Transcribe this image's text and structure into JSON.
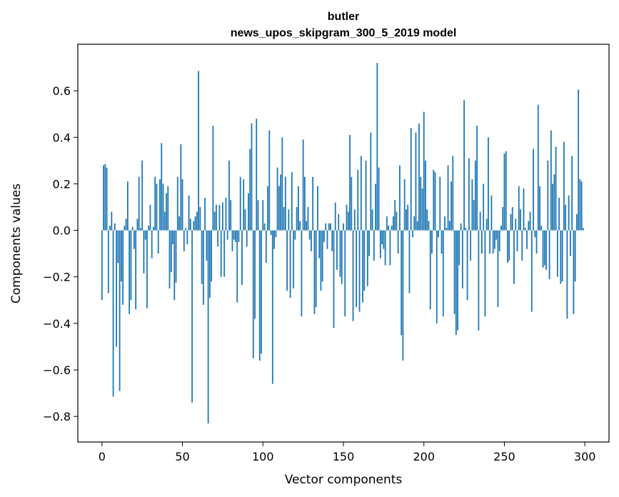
{
  "chart_data": {
    "type": "bar",
    "title": "butler",
    "subtitle": "news_upos_skipgram_300_5_2019 model",
    "xlabel": "Vector components",
    "ylabel": "Components values",
    "xlim": [
      -15,
      315
    ],
    "ylim": [
      -0.91,
      0.8
    ],
    "x_ticks": [
      0,
      50,
      100,
      150,
      200,
      250,
      300
    ],
    "y_ticks": [
      -0.8,
      -0.6,
      -0.4,
      -0.2,
      0.0,
      0.2,
      0.4,
      0.6
    ],
    "y_tick_labels": [
      "−0.8",
      "−0.6",
      "−0.4",
      "−0.2",
      "0.0",
      "0.2",
      "0.4",
      "0.6"
    ],
    "bar_color": "#1f77b4",
    "grid": false,
    "values": [
      -0.3,
      0.28,
      0.285,
      0.27,
      -0.27,
      0.02,
      0.08,
      -0.715,
      0.03,
      -0.5,
      -0.14,
      -0.69,
      -0.22,
      -0.32,
      0.02,
      0.05,
      0.21,
      -0.36,
      -0.3,
      0.015,
      -0.08,
      -0.34,
      0.05,
      0.23,
      0.01,
      0.3,
      -0.185,
      -0.04,
      -0.335,
      0.02,
      0.11,
      -0.12,
      0.015,
      0.23,
      0.2,
      -0.1,
      0.22,
      0.375,
      0.2,
      0.08,
      0.16,
      0.19,
      -0.25,
      -0.18,
      -0.06,
      -0.3,
      -0.225,
      0.23,
      0.06,
      0.37,
      0.22,
      -0.09,
      0.01,
      -0.06,
      0.15,
      0.05,
      -0.74,
      0.04,
      0.06,
      0.08,
      0.685,
      0.1,
      -0.23,
      -0.32,
      0.14,
      -0.13,
      -0.83,
      -0.29,
      -0.22,
      0.45,
      0.08,
      0.11,
      -0.07,
      0.11,
      -0.2,
      0.12,
      -0.2,
      0.14,
      -0.04,
      0.3,
      0.13,
      -0.09,
      -0.04,
      -0.05,
      -0.31,
      -0.05,
      0.23,
      -0.235,
      0.22,
      0.09,
      -0.07,
      0.16,
      0.35,
      0.46,
      -0.55,
      -0.38,
      0.48,
      0.13,
      -0.56,
      -0.53,
      0.13,
      0.03,
      -0.14,
      0.19,
      0.43,
      -0.02,
      -0.66,
      -0.08,
      -0.03,
      0.27,
      0.19,
      0.24,
      0.4,
      0.1,
      0.23,
      -0.26,
      0.09,
      -0.29,
      0.25,
      -0.25,
      -0.04,
      0.1,
      0.19,
      0.04,
      -0.37,
      0.39,
      0.23,
      0.04,
      0.1,
      -0.04,
      -0.09,
      0.23,
      -0.36,
      -0.33,
      0.19,
      -0.12,
      -0.26,
      -0.22,
      -0.05,
      0.03,
      -0.08,
      0.03,
      0.03,
      -0.09,
      -0.42,
      0.12,
      -0.17,
      0.07,
      -0.2,
      -0.23,
      0.03,
      -0.37,
      0.11,
      0.08,
      0.41,
      0.23,
      -0.39,
      0.09,
      -0.33,
      0.26,
      -0.35,
      0.32,
      -0.31,
      -0.26,
      0.3,
      -0.24,
      -0.11,
      0.42,
      0.09,
      -0.13,
      0.2,
      0.72,
      0.27,
      -0.12,
      -0.06,
      -0.08,
      -0.15,
      0.06,
      0.02,
      -0.15,
      0.02,
      0.06,
      0.13,
      0.08,
      -0.1,
      0.28,
      -0.45,
      -0.56,
      0.22,
      0.09,
      0.11,
      -0.27,
      0.44,
      -0.03,
      0.06,
      0.42,
      0.04,
      0.46,
      0.23,
      0.18,
      0.51,
      0.3,
      0.09,
      0.04,
      -0.34,
      -0.1,
      0.26,
      0.25,
      -0.4,
      -0.03,
      0.23,
      -0.1,
      -0.37,
      0.06,
      0.01,
      0.28,
      0.04,
      0.21,
      0.32,
      -0.36,
      -0.45,
      -0.43,
      -0.15,
      0.03,
      -0.25,
      0.56,
      0.01,
      -0.3,
      0.31,
      -0.13,
      0.22,
      0.13,
      0.3,
      0.45,
      -0.43,
      0.08,
      -0.1,
      0.2,
      -0.37,
      0.05,
      0.4,
      -0.1,
      0.15,
      -0.1,
      -0.08,
      -0.04,
      -0.33,
      -0.09,
      0.02,
      0.1,
      0.33,
      0.34,
      -0.14,
      -0.13,
      0.07,
      0.1,
      -0.23,
      0.05,
      -0.09,
      0.19,
      0.09,
      -0.13,
      0.18,
      0.01,
      -0.08,
      0.04,
      0.08,
      -0.35,
      0.35,
      -0.03,
      -0.1,
      0.54,
      0.19,
      0.02,
      -0.16,
      -0.15,
      -0.17,
      0.3,
      -0.21,
      0.43,
      0.2,
      0.24,
      0.36,
      -0.2,
      0.14,
      -0.23,
      -0.22,
      0.38,
      0.11,
      -0.38,
      0.15,
      -0.11,
      0.32,
      -0.36,
      -0.22,
      0.07,
      0.605,
      0.22,
      0.21,
      0.01
    ]
  }
}
